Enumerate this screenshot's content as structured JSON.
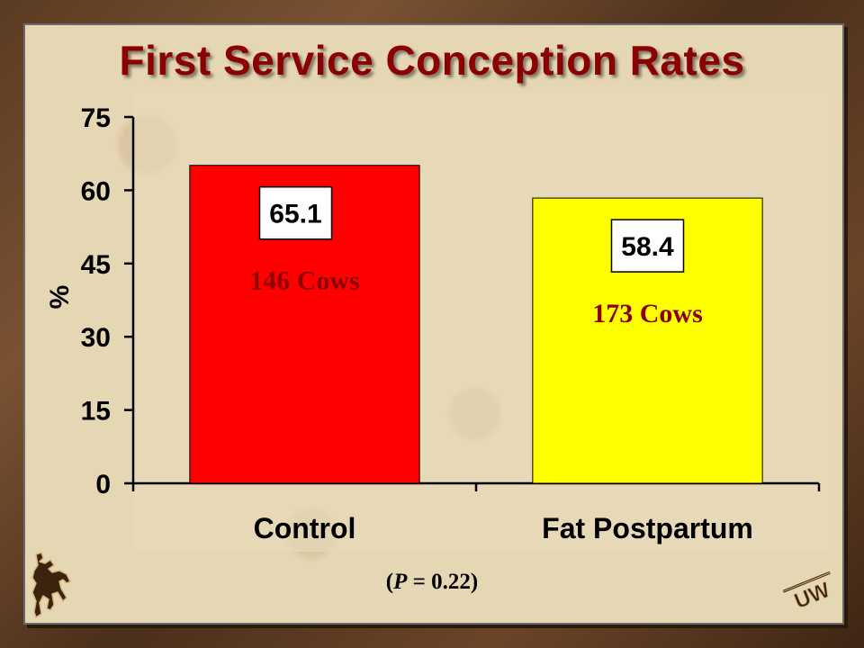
{
  "chart_data": {
    "type": "bar",
    "title": "First Service Conception Rates",
    "ylabel": "%",
    "xlabel": "",
    "ylim": [
      0,
      75
    ],
    "yticks": [
      0,
      15,
      30,
      45,
      60,
      75
    ],
    "categories": [
      "Control",
      "Fat Postpartum"
    ],
    "values": [
      65.1,
      58.4
    ],
    "value_labels": [
      "65.1",
      "58.4"
    ],
    "count_labels": [
      "146 Cows",
      "173 Cows"
    ],
    "colors": [
      "#ff0000",
      "#ffff00"
    ],
    "count_colors": [
      "#8b0000",
      "#8b0000"
    ],
    "grid": false,
    "legend": "none"
  },
  "annotation": {
    "p_prefix": "(",
    "p_symbol": "P",
    "p_rest": " = 0.22)"
  },
  "logos": {
    "left": "bucking-horse-icon",
    "right_text": "UW"
  }
}
